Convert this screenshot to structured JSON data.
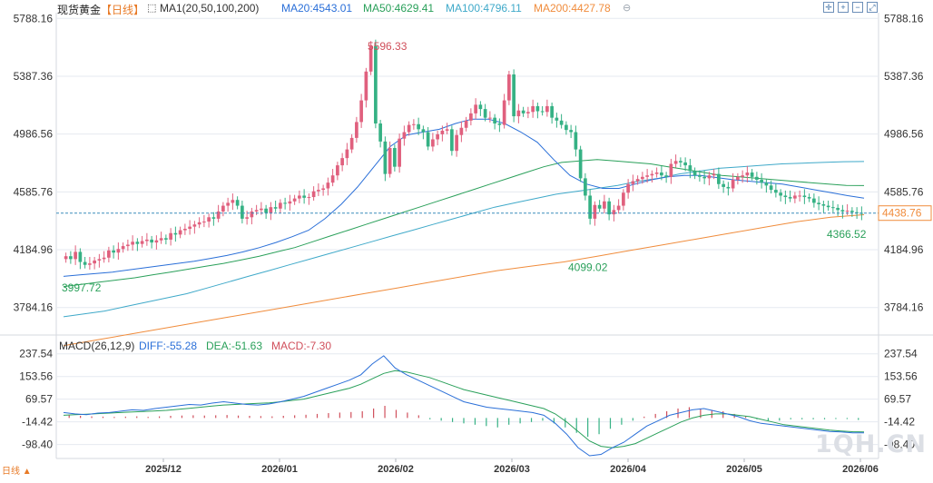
{
  "header": {
    "symbol": "现货黄金",
    "period": "【日线】",
    "indicator_name": "MA1(20,50,100,200)",
    "ma_values": [
      {
        "label": "MA20:4543.01",
        "color": "#2a6fd8"
      },
      {
        "label": "MA50:4629.41",
        "color": "#2aa05a"
      },
      {
        "label": "MA100:4796.11",
        "color": "#3fa9c9"
      },
      {
        "label": "MA200:4427.78",
        "color": "#f08c3c"
      }
    ]
  },
  "toolbar": {
    "icons": [
      "crosshair-icon",
      "zoom-in-icon",
      "zoom-out-icon",
      "fullscreen-icon"
    ]
  },
  "colors": {
    "up": "#e0607e",
    "down": "#35b184",
    "ma20": "#2a6fd8",
    "ma50": "#2aa05a",
    "ma100": "#3fa9c9",
    "ma200": "#f08c3c",
    "dif": "#2a6fd8",
    "dea": "#2aa05a",
    "grid": "#e6eaf0",
    "current": "#f08c3c"
  },
  "chart_data": [
    {
      "type": "candlestick",
      "y_ticks": [
        "5788.16",
        "5387.36",
        "4986.56",
        "4585.76",
        "4184.96",
        "3784.16"
      ],
      "ylim": [
        3600,
        5790
      ],
      "x_ticks": [
        "2025/12",
        "2026/01",
        "2026/02",
        "2026/03",
        "2026/04",
        "2026/05",
        "2026/06"
      ],
      "annotations": {
        "high": {
          "label": "5596.33",
          "value": 5596.33
        },
        "low_a": {
          "label": "3997.72",
          "value": 3997.72
        },
        "low_b": {
          "label": "4099.02",
          "value": 4099.02
        },
        "low_c": {
          "label": "4366.52",
          "value": 4366.52
        }
      },
      "current_price": {
        "label": "4438.76",
        "value": 4438.76
      },
      "close": [
        4140,
        4120,
        4170,
        4100,
        4080,
        4090,
        4110,
        4120,
        4130,
        4180,
        4165,
        4190,
        4210,
        4220,
        4240,
        4225,
        4245,
        4255,
        4235,
        4250,
        4265,
        4255,
        4300,
        4290,
        4320,
        4330,
        4345,
        4360,
        4375,
        4380,
        4410,
        4400,
        4450,
        4490,
        4510,
        4530,
        4490,
        4400,
        4410,
        4450,
        4460,
        4470,
        4440,
        4480,
        4470,
        4510,
        4505,
        4520,
        4540,
        4560,
        4545,
        4550,
        4590,
        4600,
        4610,
        4650,
        4700,
        4770,
        4820,
        4880,
        4960,
        5070,
        5220,
        5420,
        5596,
        5060,
        4935,
        4710,
        4890,
        4760,
        4955,
        5000,
        5050,
        5055,
        5020,
        5000,
        4900,
        4950,
        4985,
        5010,
        5020,
        4870,
        4980,
        5030,
        5080,
        5130,
        5190,
        5160,
        5100,
        5100,
        5060,
        5050,
        5220,
        5400,
        5110,
        5150,
        5130,
        5140,
        5180,
        5145,
        5140,
        5180,
        5100,
        5080,
        5050,
        5015,
        5000,
        4880,
        4680,
        4560,
        4400,
        4495,
        4470,
        4520,
        4430,
        4460,
        4490,
        4580,
        4640,
        4660,
        4675,
        4690,
        4700,
        4710,
        4720,
        4700,
        4690,
        4780,
        4800,
        4790,
        4770,
        4730,
        4700,
        4690,
        4680,
        4700,
        4710,
        4640,
        4620,
        4610,
        4670,
        4690,
        4700,
        4720,
        4690,
        4670,
        4650,
        4630,
        4600,
        4580,
        4560,
        4550,
        4540,
        4560,
        4560,
        4550,
        4540,
        4510,
        4500,
        4490,
        4480,
        4475,
        4460,
        4450,
        4455,
        4445,
        4440,
        4438.76
      ],
      "ma20": [
        4000,
        4010,
        4020,
        4030,
        4045,
        4060,
        4075,
        4090,
        4105,
        4125,
        4145,
        4170,
        4200,
        4235,
        4275,
        4320,
        4400,
        4500,
        4620,
        4760,
        4900,
        4980,
        5000,
        5020,
        5060,
        5090,
        5090,
        5060,
        5000,
        4930,
        4810,
        4700,
        4640,
        4610,
        4610,
        4640,
        4670,
        4690,
        4700,
        4700,
        4685,
        4670,
        4660,
        4650,
        4640,
        4620,
        4600,
        4580,
        4560,
        4543.01
      ],
      "ma50": [
        3930,
        3945,
        3960,
        3975,
        3990,
        4010,
        4030,
        4050,
        4070,
        4090,
        4115,
        4140,
        4170,
        4200,
        4240,
        4280,
        4320,
        4360,
        4400,
        4440,
        4480,
        4520,
        4560,
        4600,
        4640,
        4680,
        4720,
        4760,
        4790,
        4800,
        4810,
        4800,
        4790,
        4780,
        4760,
        4740,
        4720,
        4700,
        4690,
        4680,
        4670,
        4660,
        4650,
        4640,
        4630,
        4629.41
      ],
      "ma100": [
        3720,
        3740,
        3760,
        3790,
        3820,
        3850,
        3880,
        3920,
        3960,
        4000,
        4040,
        4080,
        4120,
        4160,
        4200,
        4240,
        4280,
        4320,
        4360,
        4400,
        4440,
        4480,
        4510,
        4540,
        4570,
        4590,
        4610,
        4630,
        4660,
        4680,
        4710,
        4730,
        4750,
        4760,
        4770,
        4780,
        4785,
        4790,
        4795,
        4796.11
      ],
      "ma200": [
        3520,
        3560,
        3600,
        3640,
        3680,
        3720,
        3760,
        3800,
        3840,
        3880,
        3920,
        3960,
        4000,
        4040,
        4070,
        4100,
        4140,
        4180,
        4220,
        4260,
        4300,
        4340,
        4380,
        4410,
        4427.78
      ]
    },
    {
      "type": "macd",
      "title": "MACD(26,12,9)",
      "values": [
        {
          "label": "DIFF:-55.28",
          "color": "#2a6fd8"
        },
        {
          "label": "DEA:-51.63",
          "color": "#2aa05a"
        },
        {
          "label": "MACD:-7.30",
          "color": "#d04f5b"
        }
      ],
      "y_ticks": [
        "237.54",
        "153.56",
        "69.57",
        "-14.42",
        "-98.40"
      ],
      "ylim": [
        -150,
        250
      ],
      "diff": [
        20,
        15,
        12,
        18,
        20,
        25,
        30,
        28,
        35,
        40,
        45,
        50,
        48,
        55,
        60,
        55,
        50,
        48,
        52,
        60,
        70,
        80,
        95,
        110,
        125,
        140,
        160,
        200,
        230,
        185,
        160,
        140,
        120,
        100,
        80,
        60,
        50,
        40,
        35,
        30,
        25,
        20,
        10,
        -20,
        -60,
        -110,
        -140,
        -135,
        -110,
        -90,
        -60,
        -30,
        -10,
        10,
        20,
        30,
        35,
        25,
        15,
        5,
        -10,
        -20,
        -25,
        -30,
        -35,
        -40,
        -45,
        -50,
        -52,
        -55,
        -55.28
      ],
      "dea": [
        10,
        12,
        14,
        16,
        18,
        20,
        22,
        24,
        26,
        28,
        32,
        36,
        40,
        44,
        48,
        50,
        52,
        54,
        56,
        60,
        65,
        70,
        80,
        90,
        100,
        110,
        125,
        145,
        165,
        175,
        170,
        160,
        150,
        135,
        120,
        105,
        95,
        85,
        75,
        65,
        55,
        45,
        35,
        15,
        -15,
        -50,
        -85,
        -105,
        -110,
        -105,
        -95,
        -75,
        -55,
        -35,
        -15,
        0,
        10,
        15,
        15,
        10,
        5,
        -5,
        -15,
        -25,
        -30,
        -35,
        -40,
        -45,
        -48,
        -51,
        -51.63
      ],
      "hist": [
        10,
        8,
        6,
        5,
        4,
        5,
        6,
        4,
        6,
        8,
        9,
        10,
        9,
        10,
        11,
        9,
        8,
        7,
        6,
        8,
        10,
        12,
        15,
        18,
        20,
        22,
        25,
        35,
        45,
        30,
        20,
        10,
        -5,
        -10,
        -15,
        -20,
        -25,
        -30,
        -35,
        -25,
        -20,
        -15,
        -10,
        -20,
        -35,
        -55,
        -70,
        -60,
        -40,
        -25,
        -10,
        5,
        15,
        25,
        35,
        40,
        35,
        30,
        25,
        15,
        5,
        -5,
        -10,
        -10,
        -5,
        -5,
        -5,
        -5,
        -4,
        -4,
        -7.3
      ]
    }
  ]
}
